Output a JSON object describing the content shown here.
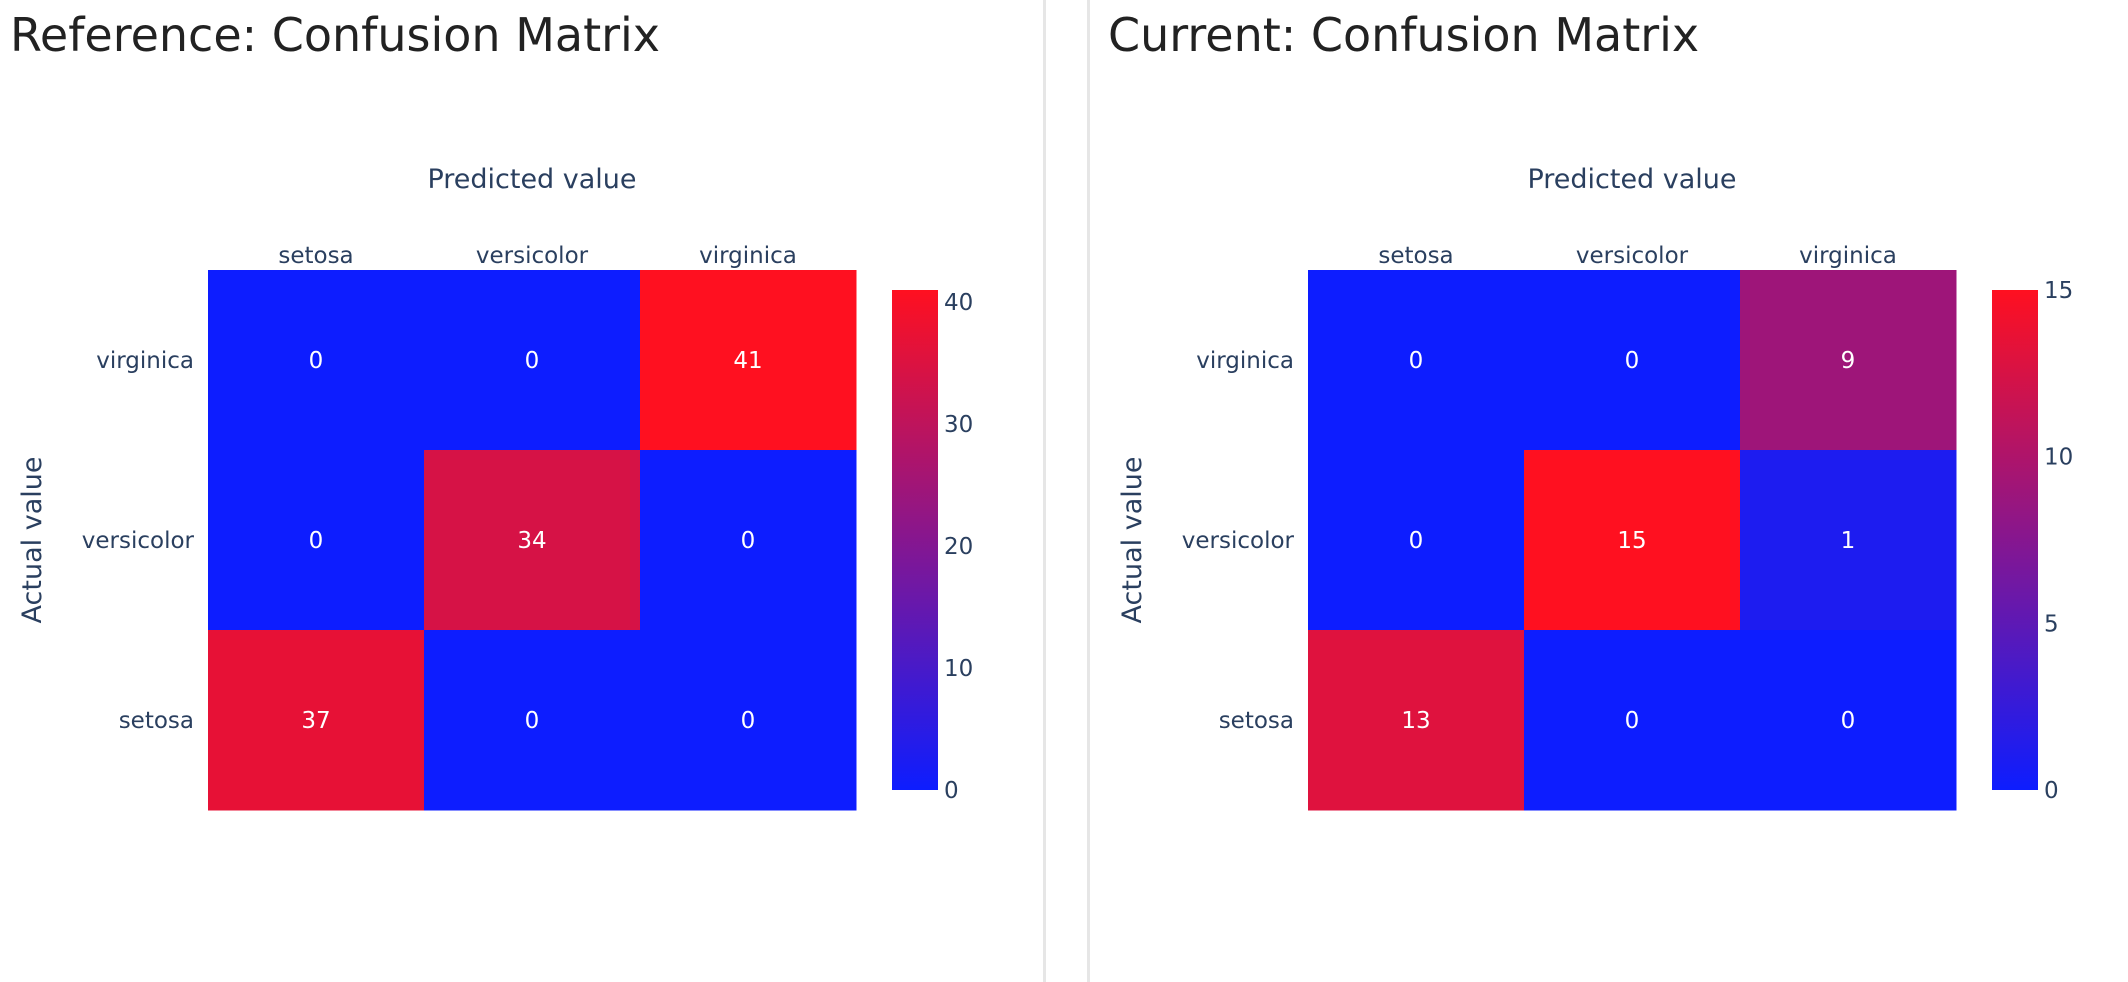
{
  "panels": [
    {
      "title": "Reference: Confusion Matrix",
      "chart_data": {
        "type": "heatmap",
        "title": "Reference: Confusion Matrix",
        "xlabel": "Predicted value",
        "ylabel": "Actual value",
        "x_categories": [
          "setosa",
          "versicolor",
          "virginica"
        ],
        "y_categories": [
          "virginica",
          "versicolor",
          "setosa"
        ],
        "z": [
          [
            0,
            0,
            41
          ],
          [
            0,
            34,
            0
          ],
          [
            37,
            0,
            0
          ]
        ],
        "colorscale": [
          "#0d1dff",
          "#ff1020"
        ],
        "zrange": [
          0,
          41
        ],
        "colorbar_ticks": [
          0,
          10,
          20,
          30,
          40
        ],
        "x_axis_side": "top"
      }
    },
    {
      "title": "Current: Confusion Matrix",
      "chart_data": {
        "type": "heatmap",
        "title": "Current: Confusion Matrix",
        "xlabel": "Predicted value",
        "ylabel": "Actual value",
        "x_categories": [
          "setosa",
          "versicolor",
          "virginica"
        ],
        "y_categories": [
          "virginica",
          "versicolor",
          "setosa"
        ],
        "z": [
          [
            0,
            0,
            9
          ],
          [
            0,
            15,
            1
          ],
          [
            13,
            0,
            0
          ]
        ],
        "colorscale": [
          "#0d1dff",
          "#ff1020"
        ],
        "zrange": [
          0,
          15
        ],
        "colorbar_ticks": [
          0,
          5,
          10,
          15
        ],
        "x_axis_side": "top"
      }
    }
  ]
}
